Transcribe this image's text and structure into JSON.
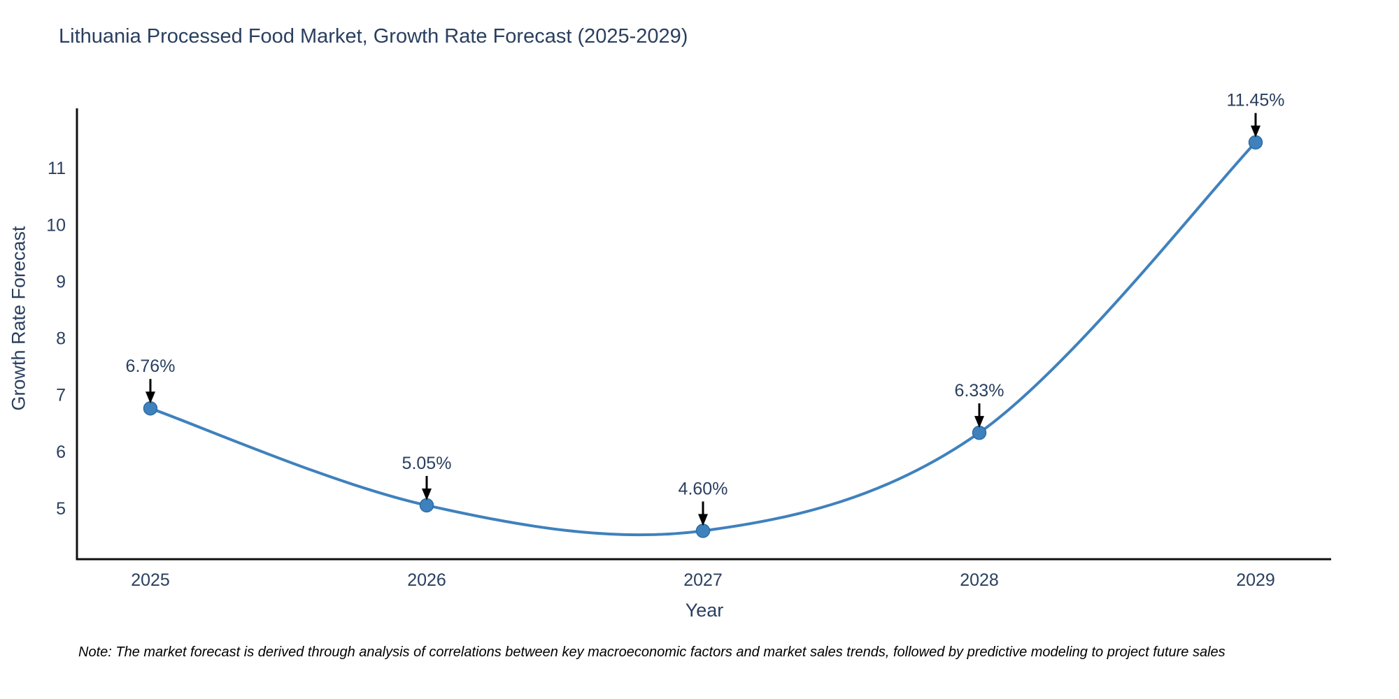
{
  "chart_data": {
    "type": "line",
    "title": "Lithuania Processed Food Market, Growth Rate Forecast (2025-2029)",
    "xlabel": "Year",
    "ylabel": "Growth Rate Forecast",
    "categories": [
      "2025",
      "2026",
      "2027",
      "2028",
      "2029"
    ],
    "series": [
      {
        "name": "Growth Rate Forecast",
        "values": [
          6.76,
          5.05,
          4.6,
          6.33,
          11.45
        ]
      }
    ],
    "point_labels": [
      "6.76%",
      "5.05%",
      "4.60%",
      "6.33%",
      "11.45%"
    ],
    "yticks": [
      5,
      6,
      7,
      8,
      9,
      10,
      11
    ],
    "ylim": [
      4.1,
      12.05
    ],
    "grid": false,
    "legend_position": "none",
    "line_color": "#3f81bd",
    "marker_color": "#3f81bd",
    "marker_edge_color": "#2e6da4",
    "annotation_arrow_color": "#000000",
    "annotation_text_color": "#2a3f5f",
    "axis_line_color": "#111111",
    "tick_label_color": "#2a3f5f"
  },
  "note": "Note: The market forecast is derived through analysis of correlations between key macroeconomic factors and market sales trends, followed by predictive modeling to project future sales"
}
